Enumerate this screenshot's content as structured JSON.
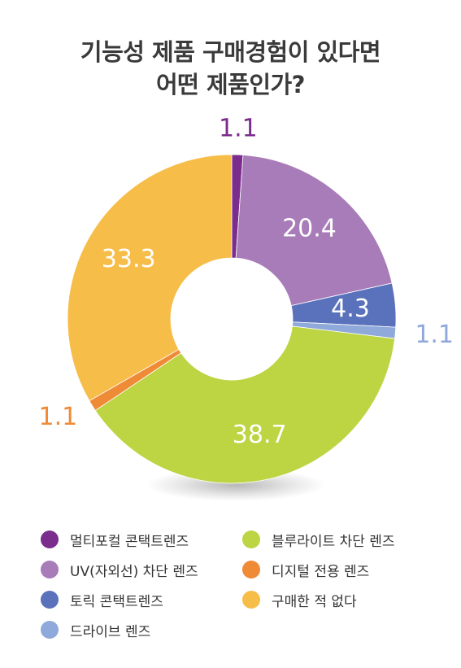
{
  "title": {
    "line1": "기능성 제품 구매경험이 있다면",
    "line2": "어떤 제품인가?"
  },
  "chart_data": {
    "type": "pie",
    "donut": true,
    "start_angle_deg": 0,
    "direction": "clockwise",
    "slices": [
      {
        "label": "멀티포컬 콘택트렌즈",
        "value": 1.1,
        "value_text": "1.1",
        "color": "#7a2d8c",
        "label_position": "outside",
        "label_color": "#7a2d8c"
      },
      {
        "label": "UV(자외선) 차단 렌즈",
        "value": 20.4,
        "value_text": "20.4",
        "color": "#a87bb9",
        "label_position": "inside",
        "label_color": "#ffffff"
      },
      {
        "label": "토릭 콘택트렌즈",
        "value": 4.3,
        "value_text": "4.3",
        "color": "#5a72bb",
        "label_position": "inside",
        "label_color": "#ffffff"
      },
      {
        "label": "드라이브 렌즈",
        "value": 1.1,
        "value_text": "1.1",
        "color": "#8ea9da",
        "label_position": "outside",
        "label_color": "#8ea9da"
      },
      {
        "label": "블루라이트 차단 렌즈",
        "value": 38.7,
        "value_text": "38.7",
        "color": "#bdd443",
        "label_position": "inside",
        "label_color": "#ffffff"
      },
      {
        "label": "디지털 전용 렌즈",
        "value": 1.1,
        "value_text": "1.1",
        "color": "#ef8a36",
        "label_position": "outside",
        "label_color": "#ef8a36"
      },
      {
        "label": "구매한 적 없다",
        "value": 33.3,
        "value_text": "33.3",
        "color": "#f7bd49",
        "label_position": "inside",
        "label_color": "#ffffff"
      }
    ]
  },
  "legend": [
    {
      "label": "멀티포컬 콘택트렌즈",
      "color": "#7a2d8c"
    },
    {
      "label": "UV(자외선) 차단 렌즈",
      "color": "#a87bb9"
    },
    {
      "label": "토릭 콘택트렌즈",
      "color": "#5a72bb"
    },
    {
      "label": "드라이브 렌즈",
      "color": "#8ea9da"
    },
    {
      "label": "블루라이트 차단 렌즈",
      "color": "#bdd443"
    },
    {
      "label": "디지털 전용 렌즈",
      "color": "#ef8a36"
    },
    {
      "label": "구매한 적 없다",
      "color": "#f7bd49"
    }
  ]
}
